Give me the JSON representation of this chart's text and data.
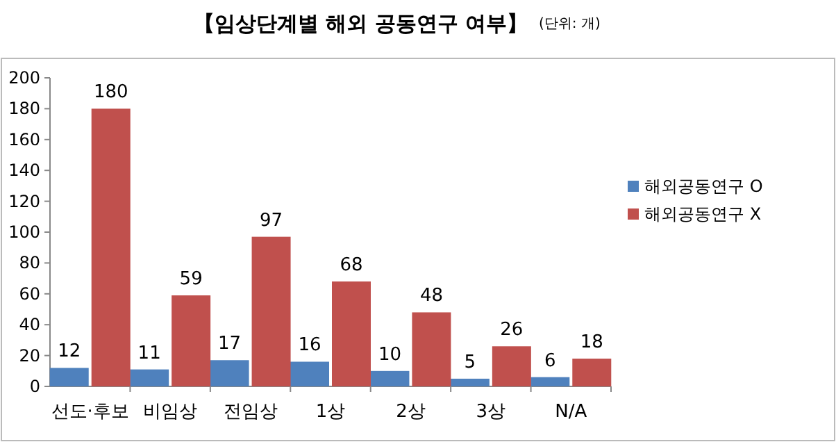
{
  "chart_data": {
    "type": "bar",
    "title": "【임상단계별 해외 공동연구 여부】",
    "subtitle": "(단위: 개)",
    "categories": [
      "선도·후보",
      "비임상",
      "전임상",
      "1상",
      "2상",
      "3상",
      "N/A"
    ],
    "series": [
      {
        "name": "해외공동연구 O",
        "color": "#4f81bd",
        "values": [
          12,
          11,
          17,
          16,
          10,
          5,
          6
        ]
      },
      {
        "name": "해외공동연구 X",
        "color": "#c0504d",
        "values": [
          180,
          59,
          97,
          68,
          48,
          26,
          18
        ]
      }
    ],
    "ylim": [
      0,
      200
    ],
    "yticks": [
      0,
      20,
      40,
      60,
      80,
      100,
      120,
      140,
      160,
      180,
      200
    ],
    "data_labels": true,
    "legend": "right"
  }
}
